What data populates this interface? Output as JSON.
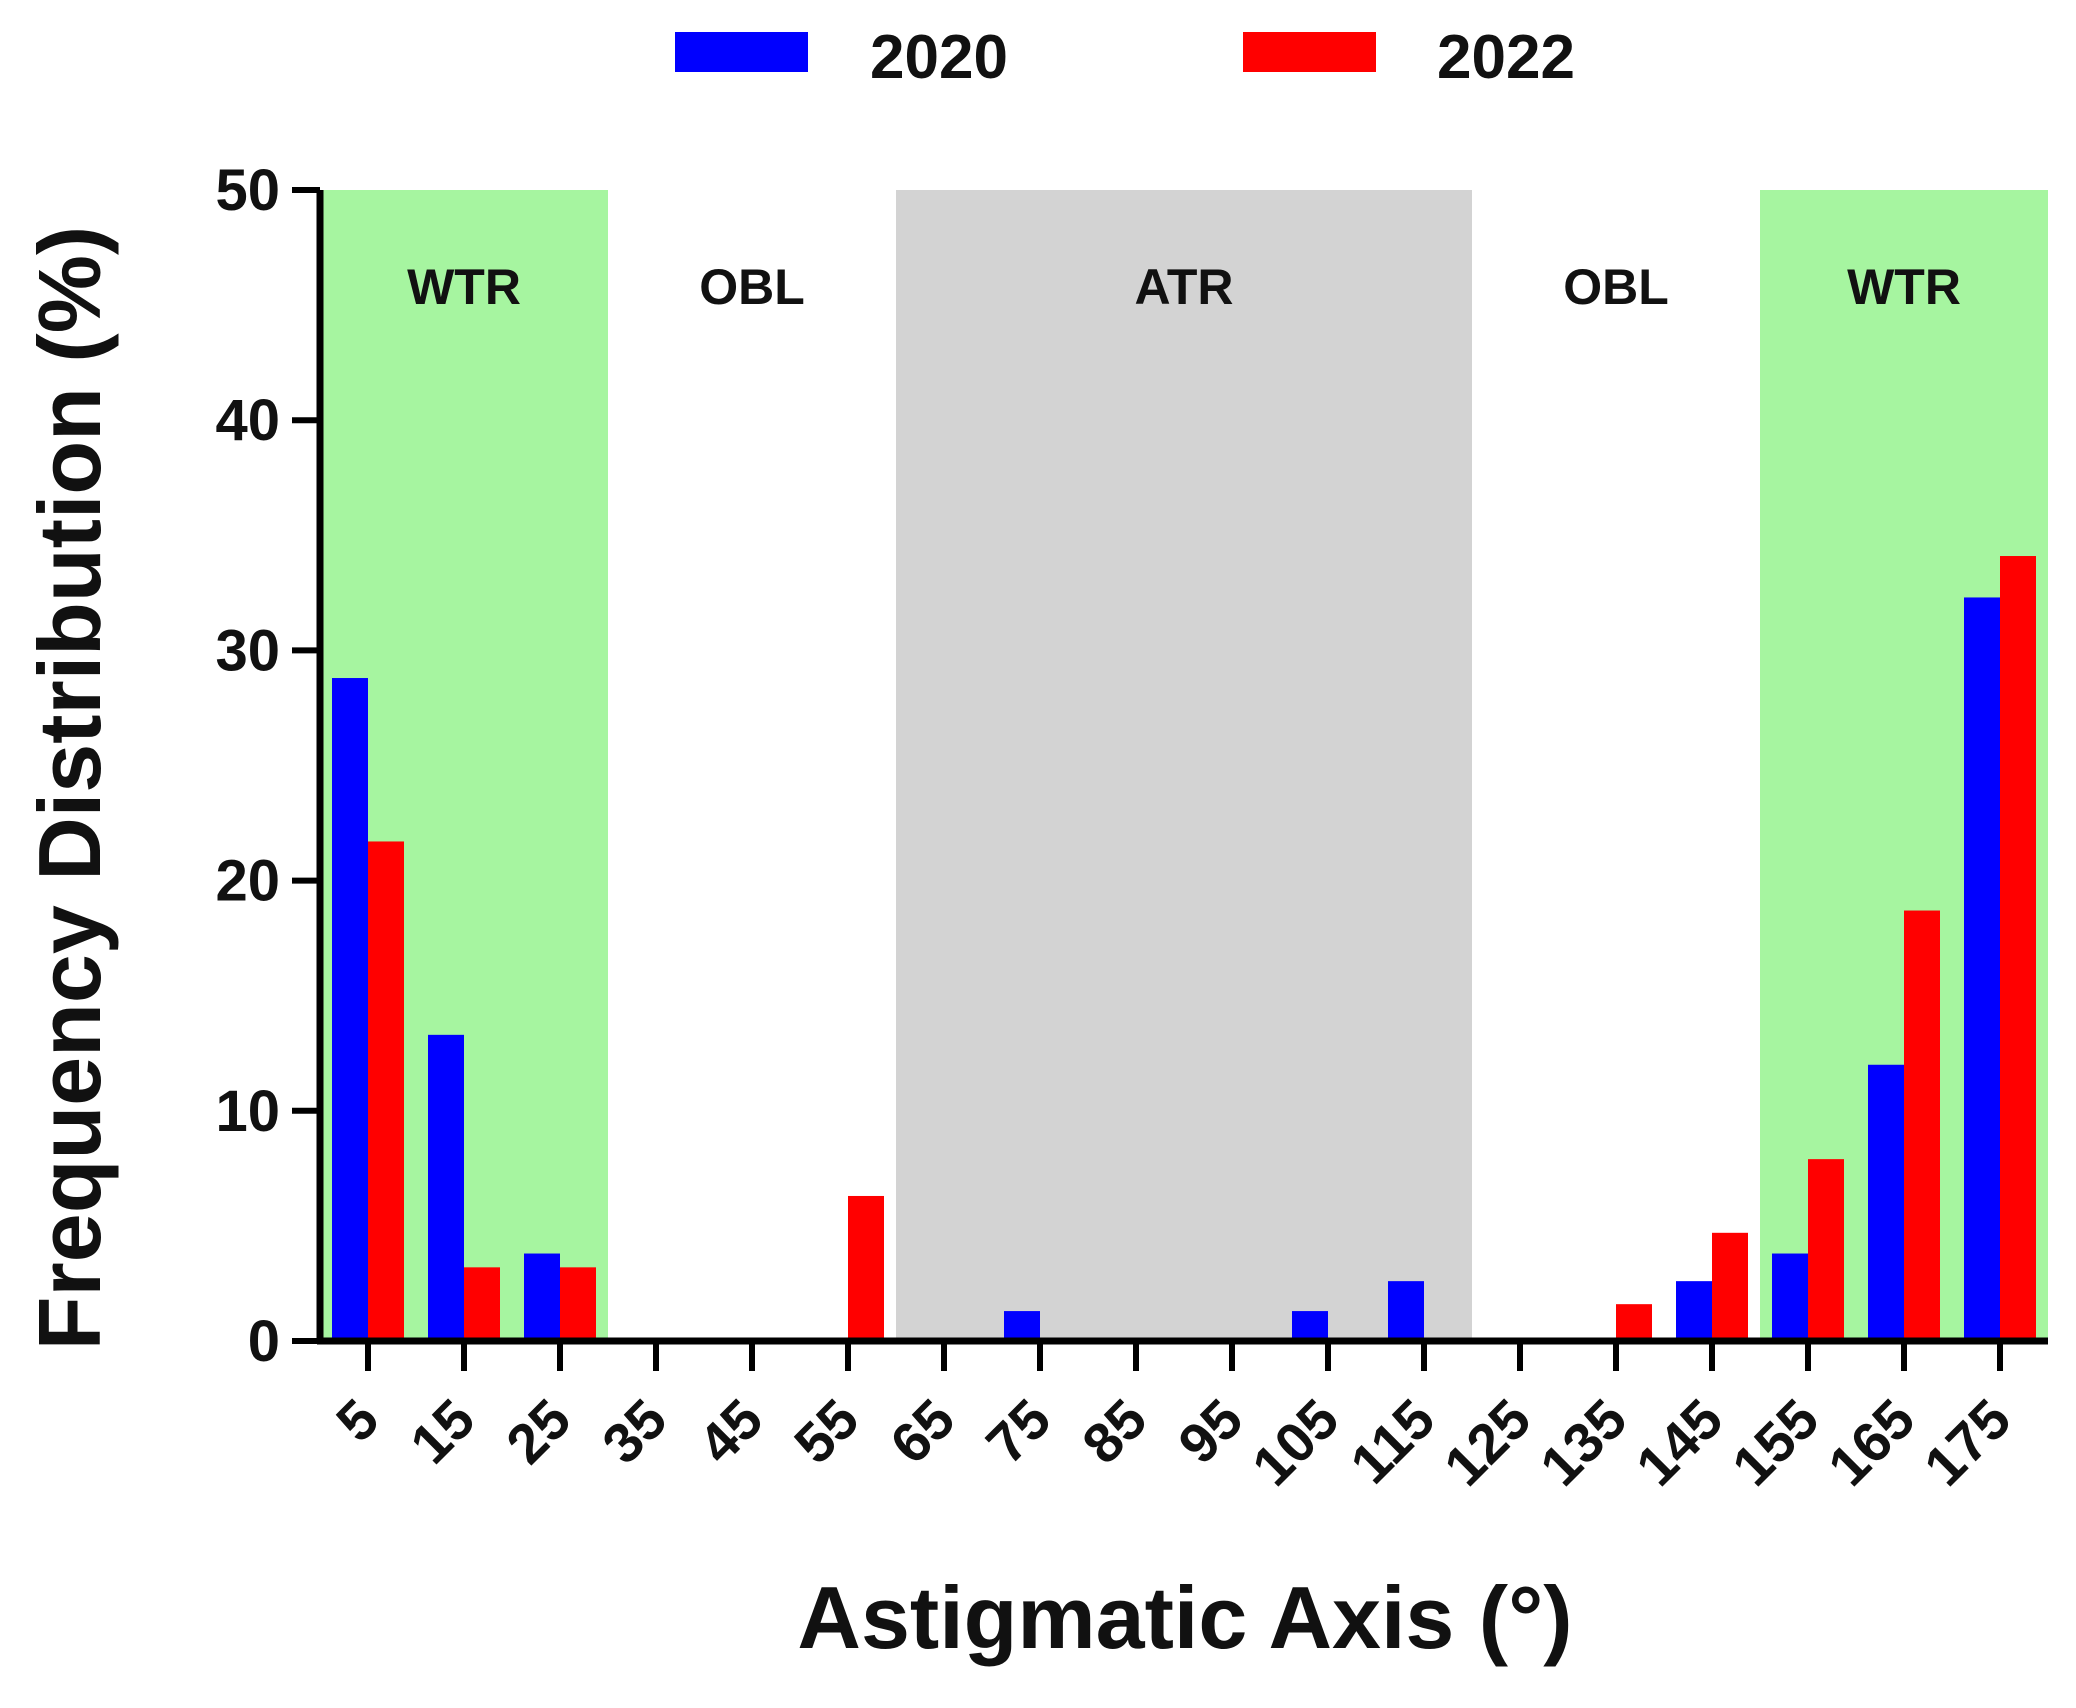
{
  "chart_data": {
    "type": "bar",
    "title": "",
    "xlabel": "Astigmatic Axis  (°)",
    "ylabel": "Frequency Distribution (%)",
    "ylim": [
      0,
      50
    ],
    "yticks": [
      0,
      10,
      20,
      30,
      40,
      50
    ],
    "categories": [
      "5",
      "15",
      "25",
      "35",
      "45",
      "55",
      "65",
      "75",
      "85",
      "95",
      "105",
      "115",
      "125",
      "135",
      "145",
      "155",
      "165",
      "175"
    ],
    "series": [
      {
        "name": "2020",
        "color": "#0000ff",
        "values": [
          28.8,
          13.3,
          3.8,
          0,
          0,
          0,
          0,
          1.3,
          0,
          0,
          1.3,
          2.6,
          0,
          0,
          2.6,
          3.8,
          12.0,
          32.3
        ]
      },
      {
        "name": "2022",
        "color": "#ff0000",
        "values": [
          21.7,
          3.2,
          3.2,
          0,
          0,
          6.3,
          0,
          0,
          0,
          0,
          0,
          0,
          0,
          1.6,
          4.7,
          7.9,
          18.7,
          34.1
        ]
      }
    ],
    "legend": {
      "position": "top-center",
      "entries": [
        "2020",
        "2022"
      ]
    },
    "regions": [
      {
        "label": "WTR",
        "from_axis": 0,
        "to_axis": 30,
        "color": "#a6f5a0"
      },
      {
        "label": "OBL",
        "from_axis": 30,
        "to_axis": 60,
        "color": "#ffffff"
      },
      {
        "label": "ATR",
        "from_axis": 60,
        "to_axis": 120,
        "color": "#d3d3d3"
      },
      {
        "label": "OBL",
        "from_axis": 120,
        "to_axis": 150,
        "color": "#ffffff"
      },
      {
        "label": "WTR",
        "from_axis": 150,
        "to_axis": 180,
        "color": "#a6f5a0"
      }
    ],
    "grid": false
  }
}
